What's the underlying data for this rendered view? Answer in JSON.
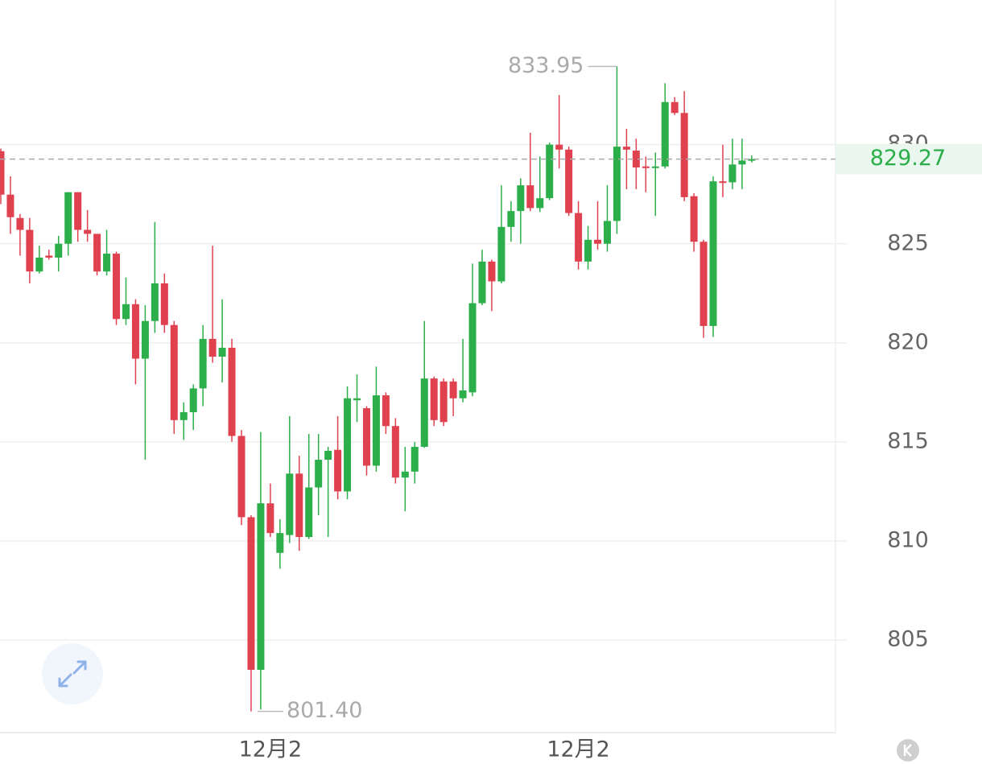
{
  "chart_data": {
    "type": "candlestick",
    "categories": [
      null,
      null,
      null,
      null,
      null,
      null,
      null,
      null,
      null,
      null,
      null,
      null,
      null,
      null,
      null,
      null,
      null,
      null,
      null,
      null,
      null,
      null,
      null,
      null,
      null,
      null,
      null,
      null,
      "12月2",
      null,
      null,
      null,
      null,
      null,
      null,
      null,
      null,
      null,
      null,
      null,
      null,
      null,
      null,
      null,
      null,
      null,
      null,
      null,
      null,
      null,
      null,
      null,
      null,
      null,
      null,
      null,
      null,
      null,
      null,
      null,
      "12月2",
      null,
      null,
      null,
      null,
      null,
      null,
      null,
      null,
      null,
      null,
      null,
      null,
      null,
      null,
      null,
      null,
      null,
      null
    ],
    "open": [
      829.67,
      827.48,
      826.3,
      825.7,
      823.6,
      824.4,
      824.3,
      825.0,
      827.6,
      825.7,
      825.5,
      823.6,
      824.5,
      821.2,
      821.95,
      819.2,
      821.1,
      823.0,
      820.9,
      816.1,
      816.5,
      817.7,
      820.2,
      819.3,
      819.75,
      815.3,
      811.2,
      803.5,
      811.9,
      809.4,
      810.3,
      813.4,
      810.2,
      812.7,
      814.1,
      814.6,
      812.5,
      817.1,
      816.7,
      813.8,
      817.35,
      815.8,
      813.2,
      813.5,
      814.75,
      818.2,
      818.05,
      818.05,
      817.2,
      817.5,
      822.0,
      824.1,
      823.1,
      825.85,
      826.65,
      827.95,
      826.8,
      827.3,
      830.0,
      829.75,
      826.55,
      824.1,
      825.2,
      825.0,
      826.15,
      829.9,
      829.7,
      828.9,
      828.85,
      828.9,
      832.15,
      831.6,
      827.4,
      825.1,
      820.85,
      828.15,
      828.1,
      829.0,
      829.2
    ],
    "high": [
      829.8,
      828.4,
      826.5,
      826.3,
      824.9,
      824.7,
      825.4,
      827.6,
      827.6,
      826.7,
      825.5,
      825.7,
      824.6,
      823.3,
      822.2,
      821.9,
      826.1,
      823.5,
      821.1,
      817.0,
      817.9,
      820.9,
      824.9,
      822.2,
      820.2,
      815.6,
      811.3,
      815.5,
      812.9,
      811.1,
      816.3,
      814.3,
      815.4,
      815.4,
      814.75,
      816.3,
      817.8,
      818.4,
      816.8,
      818.8,
      817.5,
      816.2,
      814.75,
      815.0,
      821.1,
      818.3,
      818.2,
      818.2,
      820.2,
      824.0,
      824.7,
      824.2,
      827.95,
      827.15,
      828.3,
      830.6,
      829.4,
      830.1,
      832.5,
      829.9,
      827.15,
      825.9,
      827.15,
      827.95,
      833.95,
      830.8,
      830.3,
      829.4,
      829.6,
      833.1,
      832.4,
      832.7,
      827.55,
      825.2,
      828.4,
      830.0,
      830.3,
      830.3,
      829.45
    ],
    "low": [
      827.0,
      825.5,
      824.4,
      823.0,
      823.5,
      824.2,
      823.6,
      824.4,
      825.1,
      825.1,
      823.4,
      823.4,
      820.9,
      820.9,
      817.9,
      814.1,
      820.5,
      820.5,
      815.4,
      815.1,
      815.6,
      816.8,
      819.0,
      818.0,
      815.0,
      810.8,
      801.4,
      801.5,
      810.2,
      808.6,
      809.9,
      809.5,
      810.1,
      811.3,
      810.2,
      812.1,
      812.1,
      816.0,
      813.3,
      813.5,
      815.4,
      812.9,
      811.5,
      812.9,
      814.7,
      815.8,
      815.8,
      816.3,
      817.0,
      817.3,
      821.9,
      821.6,
      823.0,
      825.1,
      825.0,
      826.65,
      826.6,
      827.2,
      828.8,
      826.4,
      823.7,
      823.7,
      824.7,
      824.6,
      825.5,
      827.75,
      827.75,
      827.6,
      826.4,
      828.8,
      831.5,
      827.15,
      824.6,
      820.25,
      820.3,
      827.35,
      827.75,
      827.75,
      829.1
    ],
    "close": [
      827.48,
      826.34,
      825.7,
      823.6,
      824.3,
      824.3,
      825.0,
      827.6,
      825.7,
      825.5,
      823.6,
      824.5,
      821.2,
      821.95,
      819.2,
      821.1,
      823.0,
      820.9,
      816.1,
      816.5,
      817.7,
      820.2,
      819.3,
      819.75,
      815.3,
      811.2,
      803.5,
      811.9,
      810.4,
      810.4,
      813.4,
      810.2,
      812.7,
      814.1,
      814.55,
      812.5,
      817.2,
      817.2,
      813.8,
      817.35,
      815.8,
      813.2,
      813.5,
      814.75,
      818.2,
      816.1,
      816.0,
      817.2,
      817.6,
      822.0,
      824.1,
      823.1,
      825.85,
      826.65,
      827.95,
      826.8,
      827.3,
      830.0,
      829.75,
      826.55,
      824.1,
      825.2,
      825.0,
      826.15,
      829.9,
      829.75,
      828.85,
      828.85,
      828.9,
      832.15,
      831.6,
      827.35,
      825.1,
      820.85,
      828.15,
      828.1,
      829.0,
      829.2,
      829.27
    ],
    "up_color": "#2cae4a",
    "down_color": "#e0414f",
    "ylim": [
      800.33,
      837.3
    ],
    "yticks": [
      805,
      810,
      815,
      820,
      825,
      830
    ],
    "grid": true,
    "last_price": 829.27,
    "high_label": 833.95,
    "low_label": {
      "value": 801.4,
      "label": "801.40"
    }
  }
}
